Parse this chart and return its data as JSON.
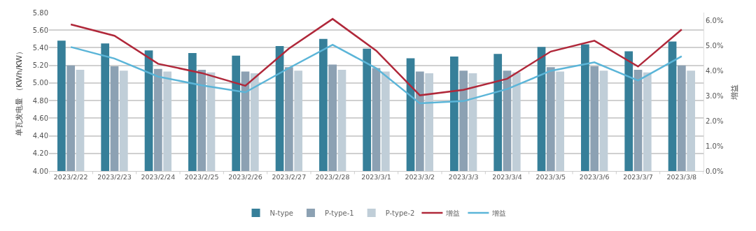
{
  "chart_data": {
    "type": "bar",
    "ylabel": "单瓦发电量 （KWh/KW）",
    "y2label": "增益",
    "categories": [
      "2023/2/22",
      "2023/2/23",
      "2023/2/24",
      "2023/2/25",
      "2023/2/26",
      "2023/2/27",
      "2023/2/28",
      "2023/3/1",
      "2023/3/2",
      "2023/3/3",
      "2023/3/4",
      "2023/3/5",
      "2023/3/6",
      "2023/3/7",
      "2023/3/8"
    ],
    "series": [
      {
        "name": "N-type",
        "color": "#367f99",
        "values": [
          5.48,
          5.45,
          5.37,
          5.34,
          5.31,
          5.42,
          5.5,
          5.39,
          5.28,
          5.3,
          5.33,
          5.41,
          5.44,
          5.36,
          5.47
        ]
      },
      {
        "name": "P-type-1",
        "color": "#8ca1b3",
        "values": [
          5.2,
          5.19,
          5.16,
          5.15,
          5.13,
          5.18,
          5.21,
          5.17,
          5.13,
          5.14,
          5.14,
          5.18,
          5.19,
          5.15,
          5.2
        ]
      },
      {
        "name": "P-type-2",
        "color": "#c0ced8",
        "values": [
          5.15,
          5.14,
          5.13,
          5.12,
          5.11,
          5.14,
          5.15,
          5.13,
          5.11,
          5.11,
          5.12,
          5.13,
          5.14,
          5.12,
          5.14
        ]
      },
      {
        "name": "增益",
        "type": "line",
        "axis": "y2",
        "color": "#b0283a",
        "values": [
          5.85,
          5.4,
          4.28,
          3.91,
          3.4,
          4.89,
          6.07,
          4.8,
          3.02,
          3.24,
          3.68,
          4.77,
          5.2,
          4.17,
          5.65
        ]
      },
      {
        "name": "增益",
        "type": "line",
        "axis": "y2",
        "color": "#5bb5d8",
        "values": [
          4.95,
          4.49,
          3.77,
          3.42,
          3.14,
          4.11,
          5.04,
          4.1,
          2.7,
          2.79,
          3.27,
          4.0,
          4.34,
          3.61,
          4.58
        ]
      }
    ],
    "ylim": [
      4.0,
      5.8
    ],
    "yticks": [
      {
        "value": 4.0,
        "label": "4.00"
      },
      {
        "value": 4.2,
        "label": "4.20"
      },
      {
        "value": 4.4,
        "label": "4.40"
      },
      {
        "value": 4.6,
        "label": "4.60"
      },
      {
        "value": 4.8,
        "label": "4.80"
      },
      {
        "value": 5.0,
        "label": "5.00"
      },
      {
        "value": 5.2,
        "label": "5.20"
      },
      {
        "value": 5.4,
        "label": "5.40"
      },
      {
        "value": 5.6,
        "label": "5.60"
      },
      {
        "value": 5.8,
        "label": "5.80"
      }
    ],
    "y2lim": [
      0,
      6.325
    ],
    "y2ticks": [
      {
        "value": 0,
        "label": "0.0%"
      },
      {
        "value": 1,
        "label": "1.0%"
      },
      {
        "value": 2,
        "label": "2.0%"
      },
      {
        "value": 3,
        "label": "3.0%"
      },
      {
        "value": 4,
        "label": "4.0%"
      },
      {
        "value": 5,
        "label": "5.0%"
      },
      {
        "value": 6,
        "label": "6.0%"
      }
    ],
    "grid": "y",
    "legend": "bottom",
    "marker": "none"
  }
}
